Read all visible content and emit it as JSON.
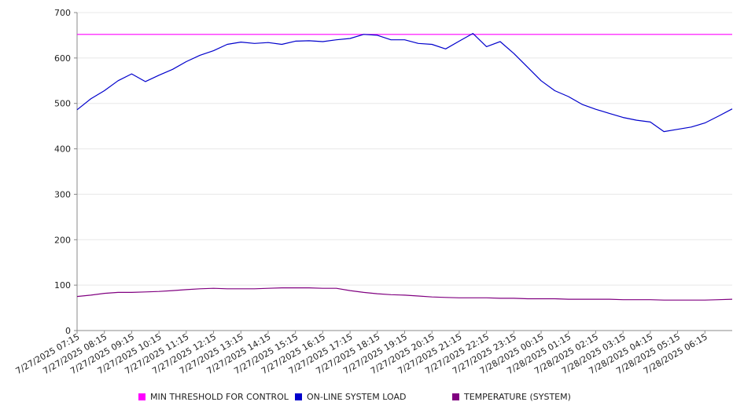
{
  "chart_data": {
    "type": "line",
    "title": "",
    "xlabel": "",
    "ylabel": "",
    "ylim": [
      0,
      700
    ],
    "yticks": [
      0,
      100,
      200,
      300,
      400,
      500,
      600,
      700
    ],
    "grid": true,
    "legend_placement": "bottom",
    "x_tick_labels": [
      "7/27/2025 07:15",
      "7/27/2025 08:15",
      "7/27/2025 09:15",
      "7/27/2025 10:15",
      "7/27/2025 11:15",
      "7/27/2025 12:15",
      "7/27/2025 13:15",
      "7/27/2025 14:15",
      "7/27/2025 15:15",
      "7/27/2025 16:15",
      "7/27/2025 17:15",
      "7/27/2025 18:15",
      "7/27/2025 19:15",
      "7/27/2025 20:15",
      "7/27/2025 21:15",
      "7/27/2025 22:15",
      "7/27/2025 23:15",
      "7/28/2025 00:15",
      "7/28/2025 01:15",
      "7/28/2025 02:15",
      "7/28/2025 03:15",
      "7/28/2025 04:15",
      "7/28/2025 05:15",
      "7/28/2025 06:15"
    ],
    "x_hours": [
      0,
      0.5,
      1,
      1.5,
      2,
      2.5,
      3,
      3.5,
      4,
      4.5,
      5,
      5.5,
      6,
      6.5,
      7,
      7.5,
      8,
      8.5,
      9,
      9.5,
      10,
      10.5,
      11,
      11.5,
      12,
      12.5,
      13,
      13.5,
      14,
      14.5,
      15,
      15.5,
      16,
      16.5,
      17,
      17.5,
      18,
      18.5,
      19,
      19.5,
      20,
      20.5,
      21,
      21.5,
      22,
      22.5,
      23,
      23.5,
      24
    ],
    "series": [
      {
        "name": "MIN THRESHOLD FOR CONTROL",
        "color": "#ff00ff",
        "values": [
          652,
          652,
          652,
          652,
          652,
          652,
          652,
          652,
          652,
          652,
          652,
          652,
          652,
          652,
          652,
          652,
          652,
          652,
          652,
          652,
          652,
          652,
          652,
          652,
          652,
          652,
          652,
          652,
          652,
          652,
          652,
          652,
          652,
          652,
          652,
          652,
          652,
          652,
          652,
          652,
          652,
          652,
          652,
          652,
          652,
          652,
          652,
          652,
          652
        ]
      },
      {
        "name": "ON-LINE SYSTEM LOAD",
        "color": "#0000cc",
        "values": [
          486,
          510,
          528,
          550,
          565,
          548,
          562,
          575,
          592,
          606,
          616,
          630,
          635,
          632,
          634,
          630,
          637,
          638,
          636,
          640,
          643,
          652,
          650,
          640,
          640,
          632,
          630,
          620,
          637,
          654,
          625,
          636,
          610,
          580,
          550,
          528,
          515,
          498,
          487,
          478,
          469,
          463,
          459,
          438,
          443,
          448,
          457,
          472,
          488
        ]
      },
      {
        "name": "TEMPERATURE (SYSTEM)",
        "color": "#800080",
        "values": [
          75,
          78,
          82,
          84,
          84,
          85,
          86,
          88,
          90,
          92,
          93,
          92,
          92,
          92,
          93,
          94,
          94,
          94,
          93,
          93,
          88,
          84,
          81,
          79,
          78,
          76,
          74,
          73,
          72,
          72,
          72,
          71,
          71,
          70,
          70,
          70,
          69,
          69,
          69,
          69,
          68,
          68,
          68,
          67,
          67,
          67,
          67,
          68,
          69
        ]
      }
    ]
  }
}
